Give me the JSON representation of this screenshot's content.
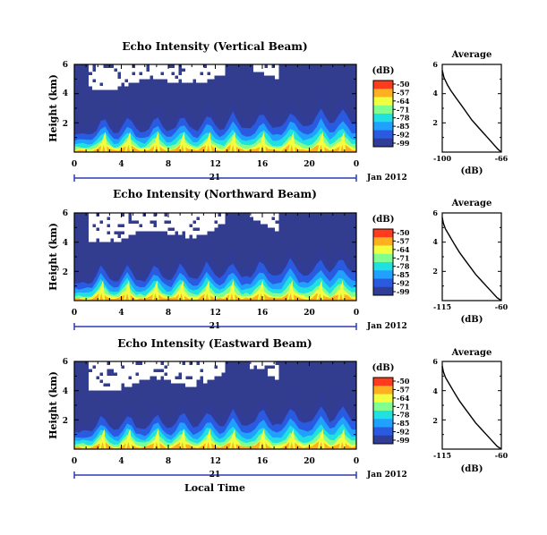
{
  "figure": {
    "date_label": "Jan 2012",
    "day_label": "21",
    "xlabel": "Local Time",
    "colorbar_unit": "(dB)",
    "colorbar_ticks": [
      "-50",
      "-57",
      "-64",
      "-71",
      "-78",
      "-85",
      "-92",
      "-99"
    ],
    "colorbar_colors": [
      "#ff3b1e",
      "#ffb020",
      "#f0ff40",
      "#80ff90",
      "#20e0e0",
      "#20a0ff",
      "#2a5ae0",
      "#303c96"
    ],
    "background_color": "#323d8f",
    "white_color": "#ffffff"
  },
  "chart_data": [
    {
      "type": "heatmap",
      "title": "Echo Intensity (Vertical Beam)",
      "ylabel": "Height (km)",
      "x_ticks": [
        "0",
        "4",
        "8",
        "12",
        "16",
        "20",
        "0"
      ],
      "y_ticks": [
        "6",
        "4",
        "2"
      ],
      "xlim": [
        0,
        24
      ],
      "ylim": [
        0,
        6
      ],
      "scale": [
        -99,
        -50
      ],
      "surface_peak_hours": [
        2.5,
        4.6,
        7.0,
        9.2,
        11.4,
        13.5,
        16.0,
        18.5,
        21.0,
        22.8
      ],
      "white_gap_top_km": 6.0,
      "white_gap_bottom_km": 4.3,
      "average": {
        "title": "Average",
        "xlabel": "(dB)",
        "x_ticks": [
          "-100",
          "-66"
        ],
        "xlim": [
          -100,
          -66
        ],
        "y_ticks": [
          "6",
          "4",
          "2"
        ],
        "ylim": [
          0,
          6
        ],
        "x": [
          -100,
          -99,
          -97,
          -95,
          -92,
          -89,
          -86,
          -83,
          -80,
          -77,
          -74,
          -71,
          -68,
          -66
        ],
        "y": [
          5.6,
          5.1,
          4.6,
          4.2,
          3.7,
          3.2,
          2.7,
          2.2,
          1.8,
          1.4,
          1.0,
          0.6,
          0.2,
          0.0
        ]
      }
    },
    {
      "type": "heatmap",
      "title": "Echo Intensity (Northward Beam)",
      "ylabel": "Height (km)",
      "x_ticks": [
        "0",
        "4",
        "8",
        "12",
        "16",
        "20",
        "0"
      ],
      "y_ticks": [
        "6",
        "4",
        "2"
      ],
      "xlim": [
        0,
        24
      ],
      "ylim": [
        0,
        6
      ],
      "scale": [
        -99,
        -50
      ],
      "surface_peak_hours": [
        2.3,
        4.5,
        6.9,
        9.1,
        11.3,
        13.4,
        15.9,
        18.4,
        20.9,
        22.7
      ],
      "white_gap_top_km": 6.0,
      "white_gap_bottom_km": 3.9,
      "average": {
        "title": "Average",
        "xlabel": "(dB)",
        "x_ticks": [
          "-115",
          "-60"
        ],
        "xlim": [
          -115,
          -60
        ],
        "y_ticks": [
          "6",
          "4",
          "2"
        ],
        "ylim": [
          0,
          6
        ],
        "x": [
          -115,
          -114,
          -112,
          -108,
          -104,
          -99,
          -94,
          -89,
          -84,
          -79,
          -74,
          -69,
          -64,
          -60
        ],
        "y": [
          5.7,
          5.3,
          4.9,
          4.4,
          3.9,
          3.3,
          2.8,
          2.3,
          1.8,
          1.4,
          1.0,
          0.6,
          0.2,
          0.0
        ]
      }
    },
    {
      "type": "heatmap",
      "title": "Echo Intensity (Eastward Beam)",
      "ylabel": "Height (km)",
      "x_ticks": [
        "0",
        "4",
        "8",
        "12",
        "16",
        "20",
        "0"
      ],
      "y_ticks": [
        "6",
        "4",
        "2"
      ],
      "xlim": [
        0,
        24
      ],
      "ylim": [
        0,
        6
      ],
      "scale": [
        -99,
        -50
      ],
      "surface_peak_hours": [
        2.4,
        4.6,
        7.0,
        9.2,
        11.4,
        13.5,
        16.0,
        18.5,
        21.0,
        22.8
      ],
      "white_gap_top_km": 6.0,
      "white_gap_bottom_km": 3.9,
      "average": {
        "title": "Average",
        "xlabel": "(dB)",
        "x_ticks": [
          "-115",
          "-60"
        ],
        "xlim": [
          -115,
          -60
        ],
        "y_ticks": [
          "6",
          "4",
          "2"
        ],
        "ylim": [
          0,
          6
        ],
        "x": [
          -115,
          -114,
          -112,
          -108,
          -104,
          -99,
          -94,
          -89,
          -84,
          -79,
          -74,
          -69,
          -64,
          -60
        ],
        "y": [
          5.7,
          5.3,
          4.9,
          4.4,
          3.9,
          3.3,
          2.8,
          2.3,
          1.8,
          1.4,
          1.0,
          0.6,
          0.2,
          0.0
        ]
      }
    }
  ]
}
